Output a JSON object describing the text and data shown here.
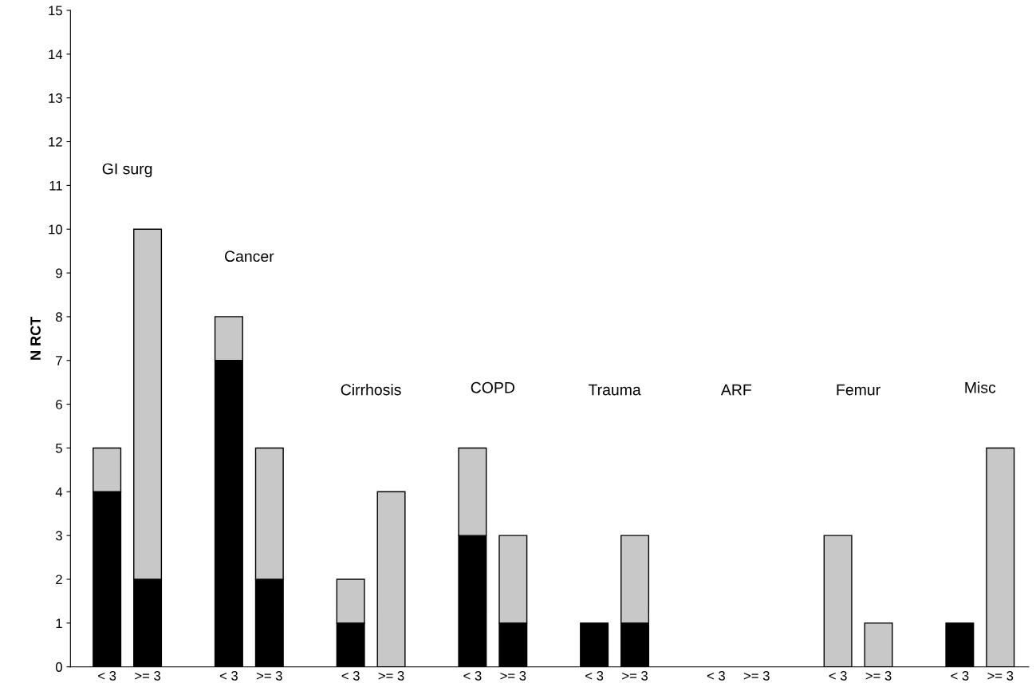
{
  "chart_data": {
    "type": "bar",
    "stacked": true,
    "ylabel": "N RCT",
    "categories": [
      "< 3",
      ">= 3",
      null,
      "< 3",
      ">= 3",
      null,
      "< 3",
      ">= 3",
      null,
      "< 3",
      ">= 3",
      null,
      "< 3",
      ">= 3",
      null,
      "< 3",
      ">= 3",
      null,
      "< 3",
      ">= 3",
      null,
      "< 3",
      ">= 3"
    ],
    "series": [
      {
        "color": "#000000",
        "values": [
          4,
          2,
          null,
          7,
          2,
          null,
          1,
          0,
          null,
          3,
          1,
          null,
          1,
          1,
          null,
          0,
          0,
          null,
          0,
          0,
          null,
          1,
          0
        ]
      },
      {
        "color": "#c8c8c8",
        "values": [
          1,
          8,
          null,
          1,
          3,
          null,
          1,
          4,
          null,
          2,
          2,
          null,
          0,
          2,
          null,
          0,
          0,
          null,
          3,
          1,
          null,
          0,
          5
        ]
      }
    ],
    "ylim": [
      0,
      15
    ],
    "yticks": [
      0,
      1,
      2,
      3,
      4,
      5,
      6,
      7,
      8,
      9,
      10,
      11,
      12,
      13,
      14,
      15
    ],
    "annotations": [
      "GI surg",
      "Cancer",
      "Cirrhosis",
      "COPD",
      "Trauma",
      "ARF",
      "Femur",
      "Misc"
    ]
  }
}
